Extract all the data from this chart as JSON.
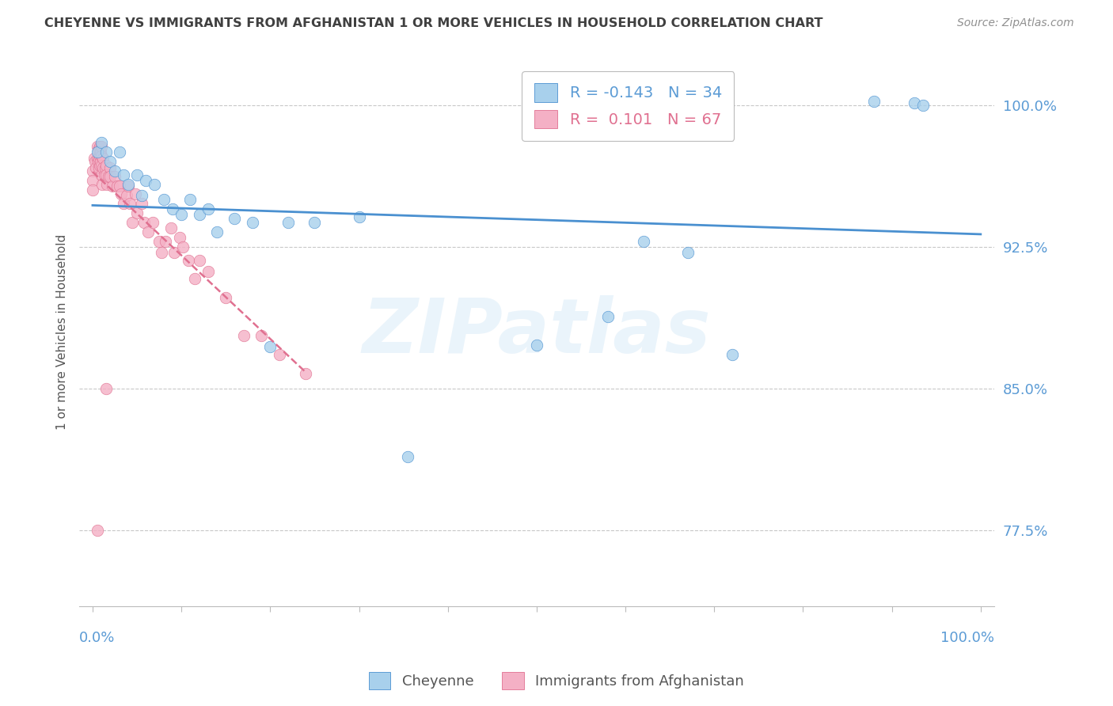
{
  "title": "CHEYENNE VS IMMIGRANTS FROM AFGHANISTAN 1 OR MORE VEHICLES IN HOUSEHOLD CORRELATION CHART",
  "source": "Source: ZipAtlas.com",
  "ylabel": "1 or more Vehicles in Household",
  "watermark": "ZIPatlas",
  "ylim": [
    0.735,
    1.025
  ],
  "xlim": [
    -0.015,
    1.015
  ],
  "yticks": [
    0.775,
    0.85,
    0.925,
    1.0
  ],
  "ytick_labels": [
    "77.5%",
    "85.0%",
    "92.5%",
    "100.0%"
  ],
  "legend_blue_R": "-0.143",
  "legend_blue_N": "34",
  "legend_pink_R": "0.101",
  "legend_pink_N": "67",
  "blue_color": "#a8d0ec",
  "pink_color": "#f4b0c5",
  "line_blue_color": "#4a90d0",
  "line_pink_color": "#e07090",
  "tick_label_color": "#5b9bd5",
  "grid_color": "#c8c8c8",
  "title_color": "#404040",
  "source_color": "#909090",
  "blue_scatter_x": [
    0.005,
    0.01,
    0.015,
    0.02,
    0.025,
    0.03,
    0.035,
    0.04,
    0.05,
    0.055,
    0.06,
    0.07,
    0.08,
    0.09,
    0.1,
    0.11,
    0.12,
    0.13,
    0.14,
    0.16,
    0.18,
    0.2,
    0.22,
    0.25,
    0.3,
    0.355,
    0.5,
    0.58,
    0.62,
    0.67,
    0.72,
    0.88,
    0.925,
    0.935
  ],
  "blue_scatter_y": [
    0.975,
    0.98,
    0.975,
    0.97,
    0.965,
    0.975,
    0.963,
    0.958,
    0.963,
    0.952,
    0.96,
    0.958,
    0.95,
    0.945,
    0.942,
    0.95,
    0.942,
    0.945,
    0.933,
    0.94,
    0.938,
    0.872,
    0.938,
    0.938,
    0.941,
    0.814,
    0.873,
    0.888,
    0.928,
    0.922,
    0.868,
    1.002,
    1.001,
    1.0
  ],
  "pink_scatter_x": [
    0.0,
    0.0,
    0.0,
    0.002,
    0.003,
    0.004,
    0.005,
    0.005,
    0.006,
    0.006,
    0.007,
    0.007,
    0.007,
    0.008,
    0.008,
    0.008,
    0.009,
    0.009,
    0.01,
    0.01,
    0.01,
    0.01,
    0.011,
    0.012,
    0.012,
    0.013,
    0.014,
    0.015,
    0.015,
    0.016,
    0.018,
    0.02,
    0.02,
    0.022,
    0.025,
    0.028,
    0.03,
    0.032,
    0.035,
    0.038,
    0.04,
    0.042,
    0.045,
    0.048,
    0.05,
    0.055,
    0.058,
    0.062,
    0.068,
    0.075,
    0.078,
    0.082,
    0.088,
    0.092,
    0.098,
    0.102,
    0.108,
    0.115,
    0.12,
    0.13,
    0.15,
    0.17,
    0.19,
    0.21,
    0.24,
    0.015,
    0.005
  ],
  "pink_scatter_y": [
    0.965,
    0.96,
    0.955,
    0.972,
    0.97,
    0.967,
    0.978,
    0.972,
    0.976,
    0.97,
    0.977,
    0.972,
    0.967,
    0.978,
    0.973,
    0.968,
    0.975,
    0.97,
    0.978,
    0.973,
    0.968,
    0.963,
    0.958,
    0.972,
    0.967,
    0.963,
    0.967,
    0.968,
    0.963,
    0.958,
    0.962,
    0.967,
    0.962,
    0.957,
    0.962,
    0.957,
    0.957,
    0.953,
    0.948,
    0.952,
    0.957,
    0.948,
    0.938,
    0.953,
    0.943,
    0.948,
    0.938,
    0.933,
    0.938,
    0.928,
    0.922,
    0.928,
    0.935,
    0.922,
    0.93,
    0.925,
    0.918,
    0.908,
    0.918,
    0.912,
    0.898,
    0.878,
    0.878,
    0.868,
    0.858,
    0.85,
    0.775
  ]
}
